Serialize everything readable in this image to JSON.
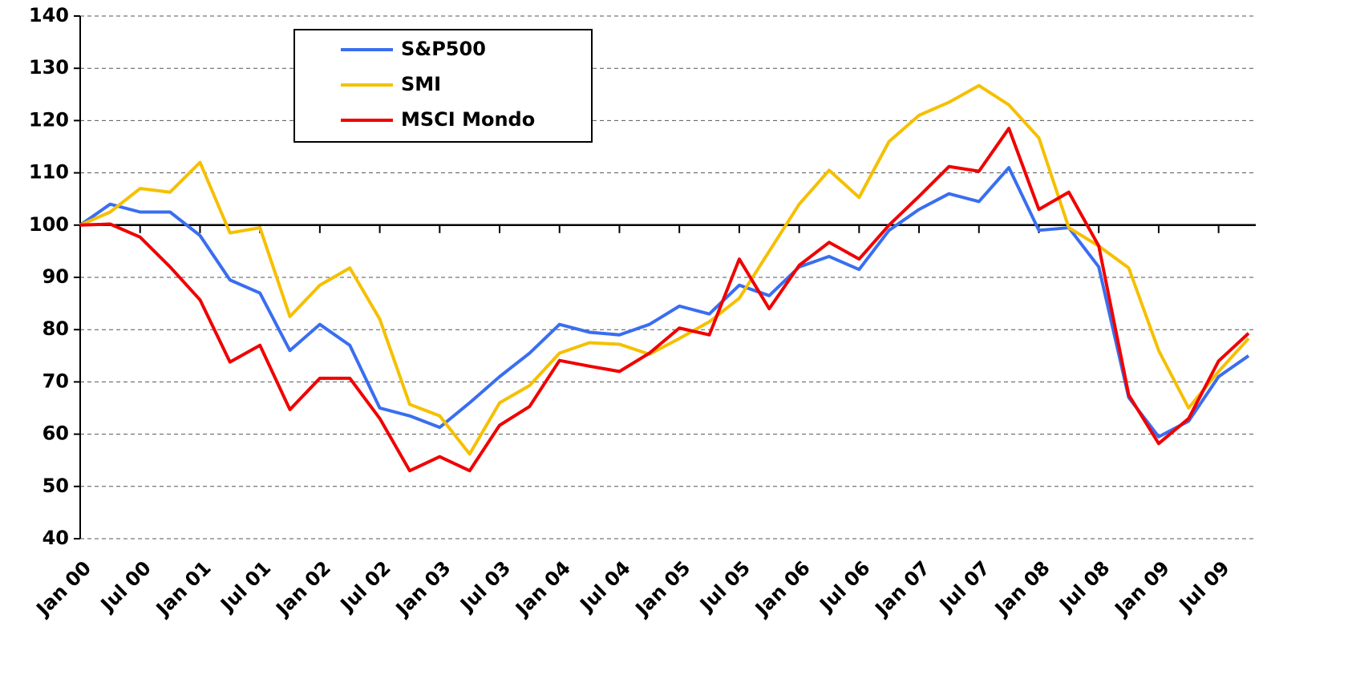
{
  "chart_data": {
    "type": "line",
    "categories": [
      "Jan 00",
      null,
      "Jul 00",
      null,
      "Jan 01",
      null,
      "Jul 01",
      null,
      "Jan 02",
      null,
      "Jul 02",
      null,
      "Jan 03",
      null,
      "Jul 03",
      null,
      "Jan 04",
      null,
      "Jul 04",
      null,
      "Jan 05",
      null,
      "Jul 05",
      null,
      "Jan 06",
      null,
      "Jul 06",
      null,
      "Jan 07",
      null,
      "Jul 07",
      null,
      "Jan 08",
      null,
      "Jul 08",
      null,
      "Jan 09",
      null,
      "Jul 09",
      null
    ],
    "series": [
      {
        "name": "S&P500",
        "color": "#3a6ef0",
        "values": [
          100,
          104,
          102.5,
          102.5,
          98,
          89.5,
          87,
          76,
          81,
          77,
          65,
          63.5,
          61.3,
          66,
          71,
          75.5,
          81,
          79.5,
          79,
          81,
          84.5,
          83,
          88.5,
          86.5,
          92,
          94,
          91.5,
          99,
          103,
          106,
          104.5,
          111,
          99,
          99.5,
          92,
          67,
          59.5,
          62.5,
          71,
          75
        ]
      },
      {
        "name": "SMI",
        "color": "#f5c000",
        "values": [
          100,
          102.5,
          107,
          106.3,
          112,
          98.5,
          99.5,
          82.5,
          88.5,
          91.8,
          82,
          65.7,
          63.5,
          56.2,
          66,
          69.3,
          75.5,
          77.5,
          77.2,
          75.3,
          78.3,
          81.5,
          86,
          95,
          104,
          110.5,
          105.3,
          116,
          121,
          123.5,
          126.7,
          123,
          116.7,
          99.5,
          96,
          91.8,
          76,
          65,
          72,
          78.3
        ]
      },
      {
        "name": "MSCI Mondo",
        "color": "#f00000",
        "values": [
          100,
          100.2,
          97.7,
          92,
          85.7,
          73.8,
          77,
          64.7,
          70.7,
          70.7,
          63,
          53,
          55.7,
          53,
          61.7,
          65.3,
          74.1,
          73,
          72,
          75.5,
          80.3,
          79,
          93.5,
          84,
          92.3,
          96.7,
          93.5,
          100,
          105.5,
          111.2,
          110.3,
          118.5,
          103,
          106.3,
          96,
          67.5,
          58.2,
          63,
          74,
          79.3
        ]
      }
    ],
    "ylim": [
      40,
      140
    ],
    "yticks": [
      40,
      50,
      60,
      70,
      80,
      90,
      100,
      110,
      120,
      130,
      140
    ],
    "baseline": 100,
    "grid": true,
    "legend": "top-left"
  }
}
